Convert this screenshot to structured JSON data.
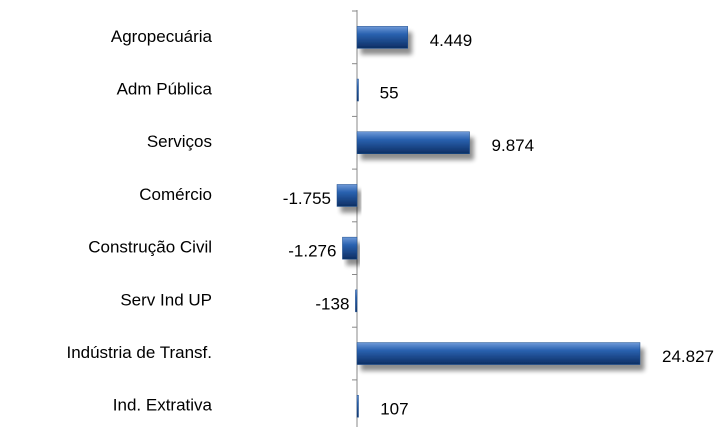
{
  "chart_data": {
    "type": "hbar",
    "categories": [
      "Agropecuária",
      "Adm Pública",
      "Serviços",
      "Comércio",
      "Construção Civil",
      "Serv Ind UP",
      "Indústria de Transf.",
      "Ind. Extrativa"
    ],
    "values": [
      4449,
      55,
      9874,
      -1755,
      -1276,
      -138,
      24827,
      107
    ],
    "value_labels": [
      "4.449",
      "55",
      "9.874",
      "-1.755",
      "-1.276",
      "-138",
      "24.827",
      "107"
    ],
    "color": "#1f4e8c"
  }
}
